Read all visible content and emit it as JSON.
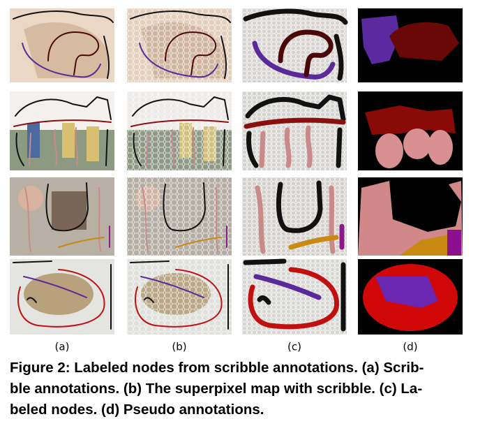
{
  "figure": {
    "column_labels": [
      "(a)",
      "(b)",
      "(c)",
      "(d)"
    ],
    "caption_lines": [
      "Figure 2: Labeled nodes from scribble annotations. (a) Scrib-",
      "ble annotations. (b) The superpixel map with scribble. (c) La-",
      "beled nodes. (d) Pseudo annotations."
    ]
  }
}
